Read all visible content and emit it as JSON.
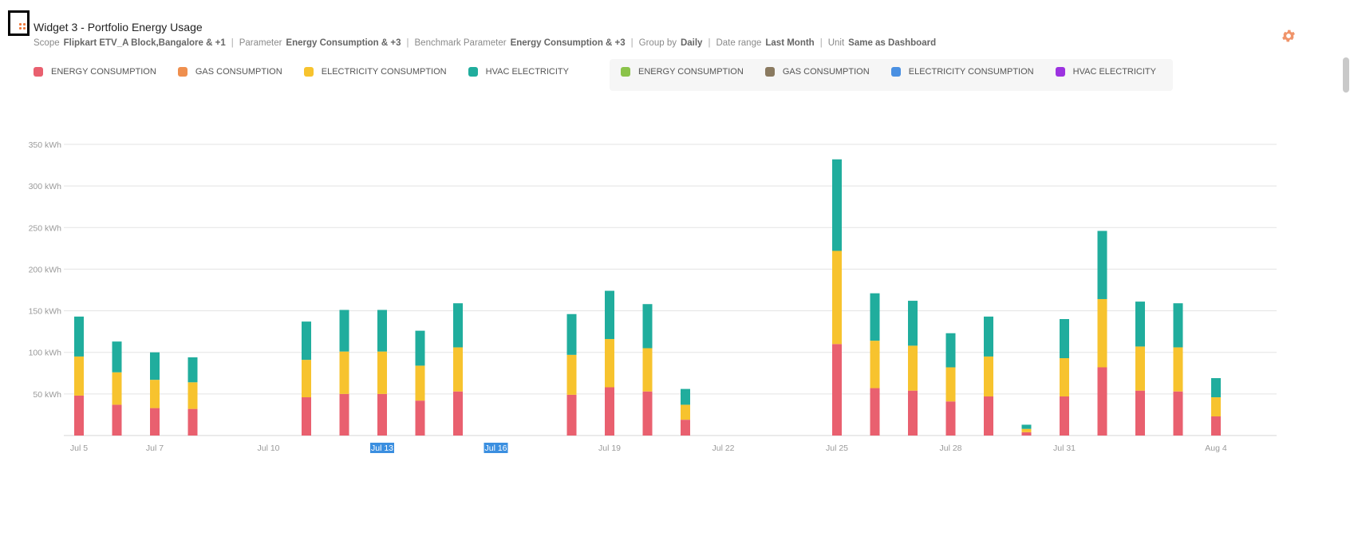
{
  "widget": {
    "title": "Widget 3 - Portfolio Energy Usage",
    "meta": [
      {
        "key": "Scope",
        "value": "Flipkart ETV_A Block,Bangalore & +1"
      },
      {
        "key": "Parameter",
        "value": "Energy Consumption & +3"
      },
      {
        "key": "Benchmark Parameter",
        "value": "Energy Consumption & +3"
      },
      {
        "key": "Group by",
        "value": "Daily"
      },
      {
        "key": "Date range",
        "value": "Last Month"
      },
      {
        "key": "Unit",
        "value": "Same as Dashboard"
      }
    ],
    "separator": "|",
    "settings_icon": "gear-icon",
    "drag_icon": "drag-handle-icon",
    "accent_color": "#f07a3c"
  },
  "legend_primary": [
    {
      "label": "ENERGY CONSUMPTION",
      "color": "#e9606f"
    },
    {
      "label": "GAS CONSUMPTION",
      "color": "#ef8f4e"
    },
    {
      "label": "ELECTRICITY CONSUMPTION",
      "color": "#f7c32e"
    },
    {
      "label": "HVAC ELECTRICITY",
      "color": "#20ad9d"
    }
  ],
  "legend_benchmark": [
    {
      "label": "ENERGY CONSUMPTION",
      "color": "#8bc34a"
    },
    {
      "label": "GAS CONSUMPTION",
      "color": "#8a7a60"
    },
    {
      "label": "ELECTRICITY CONSUMPTION",
      "color": "#4a90e2"
    },
    {
      "label": "HVAC ELECTRICITY",
      "color": "#9c33e0"
    }
  ],
  "chart_data": {
    "type": "bar",
    "stacked": true,
    "ylim": [
      0,
      350
    ],
    "yticks": [
      50,
      100,
      150,
      200,
      250,
      300,
      350
    ],
    "y_unit": "kWh",
    "grid": true,
    "x_domain": [
      4.6,
      36.6
    ],
    "xticks": [
      {
        "day": 5,
        "label": "Jul 5"
      },
      {
        "day": 7,
        "label": "Jul 7"
      },
      {
        "day": 10,
        "label": "Jul 10"
      },
      {
        "day": 13,
        "label": "Jul 13"
      },
      {
        "day": 16,
        "label": "Jul 16"
      },
      {
        "day": 19,
        "label": "Jul 19"
      },
      {
        "day": 22,
        "label": "Jul 22"
      },
      {
        "day": 25,
        "label": "Jul 25"
      },
      {
        "day": 28,
        "label": "Jul 28"
      },
      {
        "day": 31,
        "label": "Jul 31"
      },
      {
        "day": 35,
        "label": "Aug 4"
      }
    ],
    "highlighted_ticks": [
      "Jul 13",
      "Jul 16"
    ],
    "x": [
      5,
      6,
      7,
      8,
      11,
      12,
      13,
      14,
      15,
      18,
      19,
      20,
      21,
      25,
      26,
      27,
      28,
      29,
      30,
      31,
      32,
      33,
      34,
      35
    ],
    "series": [
      {
        "name": "ENERGY CONSUMPTION",
        "color": "#e9606f",
        "values": [
          48,
          37,
          33,
          32,
          46,
          50,
          50,
          42,
          53,
          49,
          58,
          53,
          19,
          110,
          57,
          54,
          41,
          47,
          4,
          47,
          82,
          54,
          53,
          23
        ]
      },
      {
        "name": "ELECTRICITY CONSUMPTION",
        "color": "#f7c32e",
        "values": [
          47,
          39,
          34,
          32,
          45,
          51,
          51,
          42,
          53,
          48,
          58,
          52,
          18,
          112,
          57,
          54,
          41,
          48,
          4,
          46,
          82,
          53,
          53,
          23
        ]
      },
      {
        "name": "HVAC ELECTRICITY",
        "color": "#20ad9d",
        "values": [
          48,
          37,
          33,
          30,
          46,
          50,
          50,
          42,
          53,
          49,
          58,
          53,
          19,
          110,
          57,
          54,
          41,
          48,
          5,
          47,
          82,
          54,
          53,
          23
        ]
      }
    ]
  }
}
